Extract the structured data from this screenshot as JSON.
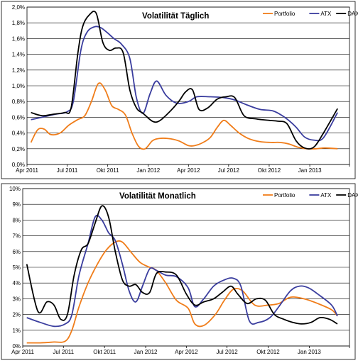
{
  "colors": {
    "portfolio": "#f07d1a",
    "atx": "#3a3d9e",
    "dax": "#000000"
  },
  "chart_data": [
    {
      "type": "line",
      "title": "Volatilität Täglich",
      "x_ticks": [
        "Apr 2011",
        "Jul 2011",
        "Okt 2011",
        "Jan 2012",
        "Apr 2012",
        "Jul 2012",
        "Okt 2012",
        "Jan 2013"
      ],
      "y_ticks": [
        "0,0%",
        "0,2%",
        "0,4%",
        "0,6%",
        "0,8%",
        "1,0%",
        "1,2%",
        "1,4%",
        "1,6%",
        "1,8%",
        "2,0%"
      ],
      "ylim": [
        0,
        2.0
      ],
      "xlim": [
        "2011-04-01",
        "2013-04-01"
      ],
      "grid": true,
      "legend": "top-right",
      "series": [
        {
          "name": "Portfolio",
          "color_key": "portfolio",
          "x": [
            "2011-04-10",
            "2011-04-25",
            "2011-05-10",
            "2011-05-25",
            "2011-06-15",
            "2011-07-05",
            "2011-07-25",
            "2011-08-10",
            "2011-08-25",
            "2011-09-10",
            "2011-09-25",
            "2011-10-10",
            "2011-10-25",
            "2011-11-10",
            "2011-11-25",
            "2011-12-10",
            "2011-12-25",
            "2012-01-10",
            "2012-01-25",
            "2012-02-15",
            "2012-03-10",
            "2012-04-01",
            "2012-04-15",
            "2012-05-01",
            "2012-05-20",
            "2012-06-05",
            "2012-06-20",
            "2012-07-05",
            "2012-07-25",
            "2012-08-15",
            "2012-09-10",
            "2012-10-05",
            "2012-10-25",
            "2012-11-15",
            "2012-12-05",
            "2012-12-25",
            "2013-01-15",
            "2013-02-05",
            "2013-03-05"
          ],
          "values": [
            0.28,
            0.44,
            0.45,
            0.38,
            0.4,
            0.5,
            0.57,
            0.62,
            0.8,
            1.03,
            0.95,
            0.75,
            0.7,
            0.63,
            0.4,
            0.23,
            0.2,
            0.3,
            0.33,
            0.33,
            0.3,
            0.24,
            0.24,
            0.27,
            0.34,
            0.47,
            0.56,
            0.5,
            0.4,
            0.33,
            0.29,
            0.28,
            0.28,
            0.26,
            0.22,
            0.2,
            0.2,
            0.21,
            0.2
          ]
        },
        {
          "name": "ATX",
          "color_key": "atx",
          "x": [
            "2011-04-10",
            "2011-05-05",
            "2011-06-05",
            "2011-07-01",
            "2011-07-15",
            "2011-08-01",
            "2011-08-15",
            "2011-09-01",
            "2011-09-15",
            "2011-10-01",
            "2011-10-15",
            "2011-11-01",
            "2011-11-20",
            "2011-12-05",
            "2011-12-20",
            "2012-01-05",
            "2012-01-20",
            "2012-02-10",
            "2012-03-05",
            "2012-04-01",
            "2012-04-20",
            "2012-05-20",
            "2012-06-20",
            "2012-07-15",
            "2012-08-10",
            "2012-09-10",
            "2012-10-10",
            "2012-11-05",
            "2012-11-30",
            "2012-12-20",
            "2013-01-10",
            "2013-02-01",
            "2013-03-05"
          ],
          "values": [
            0.57,
            0.6,
            0.64,
            0.67,
            0.8,
            1.45,
            1.68,
            1.75,
            1.74,
            1.67,
            1.6,
            1.53,
            1.35,
            0.85,
            0.65,
            0.9,
            1.06,
            0.88,
            0.78,
            0.8,
            0.86,
            0.86,
            0.85,
            0.82,
            0.76,
            0.7,
            0.68,
            0.6,
            0.48,
            0.35,
            0.31,
            0.34,
            0.66
          ]
        },
        {
          "name": "DAX",
          "color_key": "dax",
          "x": [
            "2011-04-10",
            "2011-05-05",
            "2011-06-01",
            "2011-06-25",
            "2011-07-10",
            "2011-07-25",
            "2011-08-05",
            "2011-08-20",
            "2011-09-05",
            "2011-09-20",
            "2011-10-05",
            "2011-10-20",
            "2011-11-05",
            "2011-11-20",
            "2011-12-05",
            "2011-12-20",
            "2012-01-10",
            "2012-01-25",
            "2012-02-15",
            "2012-03-10",
            "2012-03-25",
            "2012-04-10",
            "2012-04-25",
            "2012-05-15",
            "2012-06-05",
            "2012-06-25",
            "2012-07-15",
            "2012-08-05",
            "2012-09-01",
            "2012-10-01",
            "2012-10-20",
            "2012-11-10",
            "2012-12-01",
            "2012-12-20",
            "2013-01-10",
            "2013-02-01",
            "2013-03-05"
          ],
          "values": [
            0.66,
            0.62,
            0.64,
            0.66,
            0.72,
            1.4,
            1.75,
            1.9,
            1.92,
            1.55,
            1.45,
            1.48,
            1.42,
            0.95,
            0.72,
            0.65,
            0.55,
            0.55,
            0.65,
            0.8,
            0.92,
            0.95,
            0.7,
            0.72,
            0.83,
            0.86,
            0.85,
            0.62,
            0.58,
            0.56,
            0.55,
            0.52,
            0.3,
            0.21,
            0.22,
            0.4,
            0.71
          ]
        }
      ]
    },
    {
      "type": "line",
      "title": "Volatilität Monatlich",
      "x_ticks": [
        "Apr 2011",
        "Jul 2011",
        "Okt 2011",
        "Jan 2012",
        "Apr 2012",
        "Jul 2012",
        "Okt 2012",
        "Jan 2013"
      ],
      "y_ticks": [
        "0%",
        "1%",
        "2%",
        "3%",
        "4%",
        "5%",
        "6%",
        "7%",
        "8%",
        "9%",
        "10%"
      ],
      "ylim": [
        0,
        10
      ],
      "xlim": [
        "2011-04-01",
        "2013-04-01"
      ],
      "grid": true,
      "legend": "top-right",
      "series": [
        {
          "name": "Portfolio",
          "color_key": "portfolio",
          "x": [
            "2011-04-10",
            "2011-05-10",
            "2011-06-10",
            "2011-07-05",
            "2011-07-20",
            "2011-08-05",
            "2011-08-25",
            "2011-09-15",
            "2011-10-05",
            "2011-10-25",
            "2011-11-10",
            "2011-12-01",
            "2011-12-20",
            "2012-01-10",
            "2012-01-25",
            "2012-02-15",
            "2012-03-10",
            "2012-04-05",
            "2012-04-20",
            "2012-05-10",
            "2012-06-05",
            "2012-06-25",
            "2012-07-15",
            "2012-08-05",
            "2012-09-01",
            "2012-10-01",
            "2012-10-25",
            "2012-11-20",
            "2012-12-20",
            "2013-01-20",
            "2013-02-20",
            "2013-03-05"
          ],
          "values": [
            0.2,
            0.2,
            0.25,
            0.3,
            1.0,
            2.5,
            4.0,
            5.2,
            6.1,
            6.6,
            6.6,
            5.9,
            5.3,
            5.0,
            4.8,
            4.0,
            2.9,
            2.4,
            1.4,
            1.3,
            2.0,
            2.9,
            3.6,
            3.5,
            2.6,
            2.6,
            2.7,
            3.1,
            3.0,
            2.7,
            2.3,
            1.9
          ]
        },
        {
          "name": "ATX",
          "color_key": "atx",
          "x": [
            "2011-04-10",
            "2011-05-10",
            "2011-06-10",
            "2011-07-05",
            "2011-07-20",
            "2011-08-05",
            "2011-08-25",
            "2011-09-10",
            "2011-09-25",
            "2011-10-10",
            "2011-10-25",
            "2011-11-10",
            "2011-11-25",
            "2011-12-10",
            "2011-12-25",
            "2012-01-10",
            "2012-01-25",
            "2012-02-15",
            "2012-03-10",
            "2012-04-05",
            "2012-04-20",
            "2012-05-10",
            "2012-06-01",
            "2012-06-25",
            "2012-07-15",
            "2012-08-01",
            "2012-08-20",
            "2012-09-10",
            "2012-10-05",
            "2012-10-25",
            "2012-11-20",
            "2012-12-10",
            "2012-12-30",
            "2013-01-20",
            "2013-02-20",
            "2013-03-05"
          ],
          "values": [
            1.8,
            1.5,
            1.25,
            1.4,
            2.0,
            4.5,
            6.5,
            8.2,
            8.0,
            7.2,
            6.7,
            5.2,
            3.5,
            2.8,
            3.8,
            4.9,
            4.8,
            4.5,
            4.4,
            3.7,
            2.5,
            3.0,
            3.8,
            4.2,
            4.3,
            3.8,
            1.6,
            1.5,
            1.8,
            2.5,
            3.5,
            3.8,
            3.7,
            3.3,
            2.6,
            1.9
          ]
        },
        {
          "name": "DAX",
          "color_key": "dax",
          "x": [
            "2011-04-10",
            "2011-05-05",
            "2011-05-25",
            "2011-06-10",
            "2011-06-25",
            "2011-07-10",
            "2011-07-25",
            "2011-08-10",
            "2011-08-25",
            "2011-09-10",
            "2011-09-25",
            "2011-10-10",
            "2011-10-25",
            "2011-11-10",
            "2011-11-25",
            "2011-12-10",
            "2011-12-25",
            "2012-01-10",
            "2012-01-25",
            "2012-02-15",
            "2012-03-10",
            "2012-04-01",
            "2012-04-20",
            "2012-05-10",
            "2012-06-01",
            "2012-06-20",
            "2012-07-10",
            "2012-07-25",
            "2012-08-15",
            "2012-09-05",
            "2012-09-25",
            "2012-10-15",
            "2012-11-05",
            "2012-11-25",
            "2012-12-15",
            "2013-01-05",
            "2013-01-25",
            "2013-02-15",
            "2013-03-05"
          ],
          "values": [
            5.2,
            2.2,
            2.8,
            2.6,
            1.7,
            2.0,
            4.5,
            6.1,
            6.5,
            7.8,
            8.9,
            8.2,
            6.0,
            4.2,
            3.8,
            3.9,
            3.4,
            3.4,
            4.6,
            4.7,
            4.5,
            3.3,
            2.6,
            2.8,
            3.0,
            3.4,
            3.8,
            3.3,
            2.7,
            3.0,
            2.9,
            2.0,
            1.7,
            1.5,
            1.4,
            1.5,
            1.8,
            1.7,
            1.4
          ]
        }
      ]
    }
  ]
}
